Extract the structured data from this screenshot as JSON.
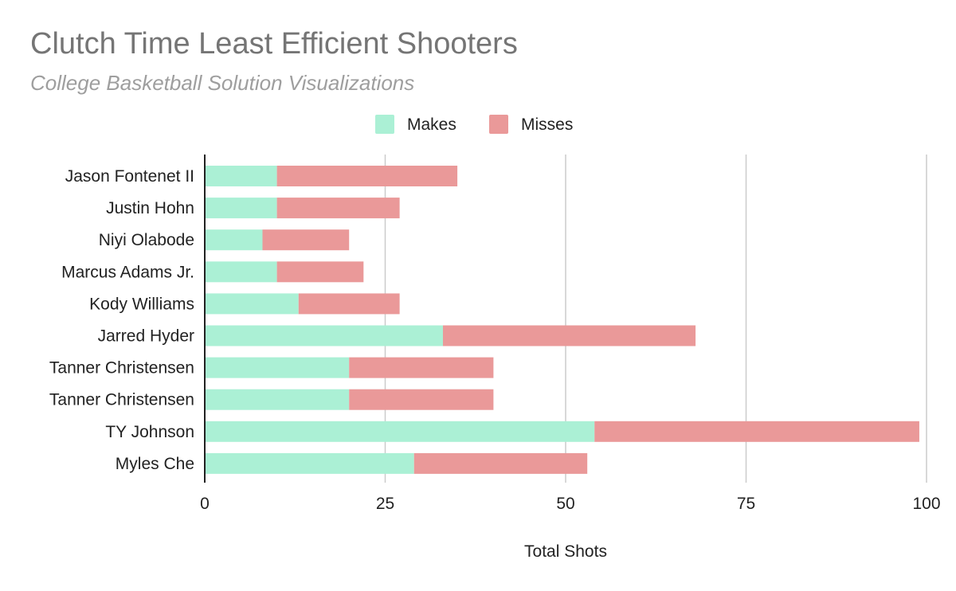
{
  "chart_data": {
    "type": "bar",
    "orientation": "horizontal",
    "stacked": true,
    "title": "Clutch Time Least Efficient Shooters",
    "subtitle": "College Basketball Solution Visualizations",
    "xlabel": "Total Shots",
    "ylabel": "",
    "xlim": [
      0,
      100
    ],
    "xticks": [
      0,
      25,
      50,
      75,
      100
    ],
    "grid": true,
    "legend_position": "top",
    "categories": [
      "Jason Fontenet II",
      "Justin Hohn",
      "Niyi Olabode",
      "Marcus Adams Jr.",
      "Kody Williams",
      "Jarred Hyder",
      "Tanner Christensen",
      "Tanner Christensen",
      "TY Johnson",
      "Myles Che"
    ],
    "series": [
      {
        "name": "Makes",
        "color": "#abf0d5",
        "values": [
          10,
          10,
          8,
          10,
          13,
          33,
          20,
          20,
          54,
          29
        ]
      },
      {
        "name": "Misses",
        "color": "#ea9999",
        "values": [
          25,
          17,
          12,
          12,
          14,
          35,
          20,
          20,
          45,
          24
        ]
      }
    ]
  }
}
